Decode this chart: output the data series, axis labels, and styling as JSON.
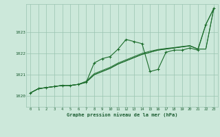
{
  "title": "Graphe pression niveau de la mer (hPa)",
  "bg_color": "#cce8da",
  "grid_color": "#99c4b0",
  "line_color": "#1a6b2a",
  "ylim": [
    1019.5,
    1024.3
  ],
  "yticks": [
    1020,
    1021,
    1022,
    1023
  ],
  "ytick_labels": [
    "1020",
    "1021",
    "1022",
    "1023"
  ],
  "xlim": [
    -0.5,
    23.5
  ],
  "xticks": [
    0,
    1,
    2,
    3,
    4,
    5,
    6,
    7,
    8,
    9,
    10,
    11,
    12,
    13,
    14,
    15,
    16,
    17,
    18,
    19,
    20,
    21,
    22,
    23
  ],
  "series_marked": [
    1020.15,
    1020.35,
    1020.4,
    1020.45,
    1020.5,
    1020.5,
    1020.55,
    1020.65,
    1021.55,
    1021.75,
    1021.85,
    1022.2,
    1022.65,
    1022.55,
    1022.45,
    1021.15,
    1021.25,
    1022.05,
    1022.15,
    1022.15,
    1022.25,
    1022.15,
    1023.35,
    1024.1
  ],
  "series_linear1": [
    1020.15,
    1020.35,
    1020.4,
    1020.45,
    1020.5,
    1020.5,
    1020.55,
    1020.65,
    1021.0,
    1021.15,
    1021.3,
    1021.5,
    1021.65,
    1021.8,
    1021.95,
    1022.05,
    1022.15,
    1022.2,
    1022.25,
    1022.3,
    1022.35,
    1022.2,
    1022.2,
    1024.1
  ],
  "series_linear2": [
    1020.15,
    1020.35,
    1020.4,
    1020.45,
    1020.5,
    1020.5,
    1020.55,
    1020.65,
    1021.0,
    1021.15,
    1021.3,
    1021.5,
    1021.65,
    1021.8,
    1021.95,
    1022.05,
    1022.15,
    1022.2,
    1022.25,
    1022.3,
    1022.35,
    1022.2,
    1023.35,
    1024.1
  ],
  "series_linear3": [
    1020.15,
    1020.35,
    1020.4,
    1020.45,
    1020.5,
    1020.5,
    1020.55,
    1020.7,
    1021.05,
    1021.2,
    1021.35,
    1021.55,
    1021.7,
    1021.85,
    1022.0,
    1022.1,
    1022.18,
    1022.23,
    1022.27,
    1022.32,
    1022.36,
    1022.2,
    1022.2,
    1024.1
  ]
}
